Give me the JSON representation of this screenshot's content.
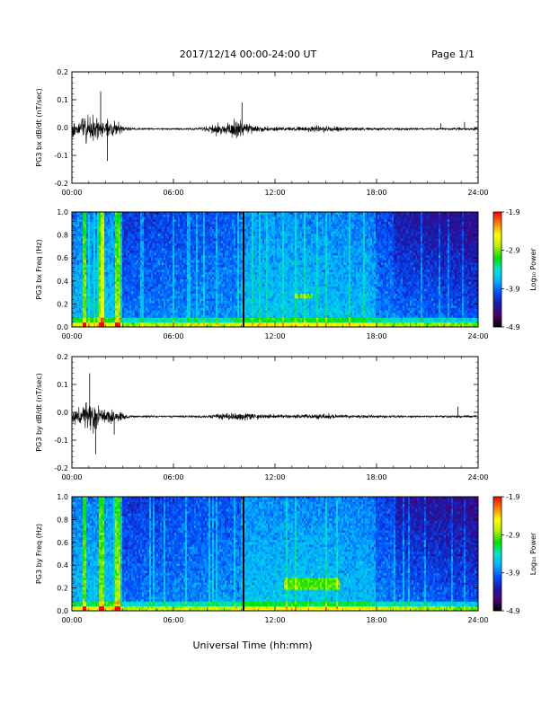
{
  "header": {
    "title": "2017/12/14  00:00-24:00 UT",
    "page": "Page 1/1"
  },
  "footer": {
    "xlabel": "Universal Time (hh:mm)"
  },
  "colors": {
    "trace": "#000000",
    "colormap": [
      "#000000",
      "#4b0070",
      "#1a1aa8",
      "#0050ff",
      "#00b4ff",
      "#00e6c8",
      "#00e000",
      "#b4f000",
      "#ffff00",
      "#ff8000",
      "#ff0000"
    ]
  },
  "chart_data": [
    {
      "type": "line",
      "panel": "bx-waveform",
      "ylabel": "PG3 bx dB/dt (nT/sec)",
      "xlim": [
        0,
        24
      ],
      "ylim": [
        -0.2,
        0.2
      ],
      "xticks": [
        "00:00",
        "06:00",
        "12:00",
        "18:00",
        "24:00"
      ],
      "yticks": [
        "-0.2",
        "-0.1",
        "0.0",
        "0.1",
        "0.2"
      ],
      "series": [
        {
          "amplitude_envelope": {
            "x": [
              0,
              0.5,
              1.0,
              1.5,
              2.0,
              2.5,
              3.0,
              3.5,
              4,
              6,
              7.5,
              8,
              8.5,
              9,
              9.5,
              10,
              10.5,
              11,
              12,
              13,
              14,
              15,
              16,
              17,
              18,
              20,
              22,
              23,
              24
            ],
            "y": [
              0.06,
              0.08,
              0.09,
              0.07,
              0.05,
              0.06,
              0.02,
              0.008,
              0.006,
              0.005,
              0.008,
              0.02,
              0.04,
              0.03,
              0.05,
              0.05,
              0.03,
              0.02,
              0.015,
              0.012,
              0.015,
              0.02,
              0.012,
              0.01,
              0.008,
              0.006,
              0.006,
              0.007,
              0.006
            ]
          },
          "offset": -0.005,
          "notable_spikes": [
            [
              1.7,
              0.13
            ],
            [
              2.1,
              -0.12
            ],
            [
              10.05,
              0.09
            ],
            [
              21.8,
              0.015
            ],
            [
              23.2,
              0.02
            ]
          ]
        }
      ]
    },
    {
      "type": "heatmap",
      "panel": "bx-spectrogram",
      "ylabel": "PG3 bx Freq (Hz)",
      "xlim": [
        0,
        24
      ],
      "ylim": [
        0,
        1.0
      ],
      "xticks": [
        "00:00",
        "06:00",
        "12:00",
        "18:00",
        "24:00"
      ],
      "yticks": [
        "0.0",
        "0.2",
        "0.4",
        "0.6",
        "0.8",
        "1.0"
      ],
      "colorbar": {
        "label": "Log₁₀ Power",
        "range": [
          -4.9,
          -1.9
        ],
        "ticks": [
          "-1.9",
          "-2.9",
          "-3.9",
          "-4.9"
        ]
      },
      "data_gaps": [
        [
          10.05,
          10.15
        ]
      ],
      "bright_bands": [
        [
          0.6,
          0.9
        ],
        [
          1.6,
          1.9
        ],
        [
          2.6,
          2.9
        ]
      ],
      "feature_blob": {
        "x": [
          13.2,
          14.2
        ],
        "freq": [
          0.24,
          0.3
        ]
      }
    },
    {
      "type": "line",
      "panel": "by-waveform",
      "ylabel": "PG3 by dB/dt (nT/sec)",
      "xlim": [
        0,
        24
      ],
      "ylim": [
        -0.2,
        0.2
      ],
      "xticks": [
        "00:00",
        "06:00",
        "12:00",
        "18:00",
        "24:00"
      ],
      "yticks": [
        "-0.2",
        "-0.1",
        "0.0",
        "0.1",
        "0.2"
      ],
      "series": [
        {
          "amplitude_envelope": {
            "x": [
              0,
              0.5,
              1.0,
              1.5,
              2.0,
              2.5,
              3.0,
              3.5,
              4,
              6,
              8,
              8.5,
              9,
              9.5,
              10,
              10.5,
              11,
              12,
              13,
              14,
              15,
              16,
              17,
              18,
              20,
              22,
              23,
              24
            ],
            "y": [
              0.04,
              0.05,
              0.09,
              0.08,
              0.04,
              0.05,
              0.02,
              0.008,
              0.006,
              0.005,
              0.008,
              0.015,
              0.02,
              0.025,
              0.03,
              0.02,
              0.015,
              0.012,
              0.012,
              0.015,
              0.018,
              0.012,
              0.01,
              0.008,
              0.006,
              0.006,
              0.008,
              0.006
            ]
          },
          "offset": -0.015,
          "notable_spikes": [
            [
              1.05,
              0.14
            ],
            [
              1.4,
              -0.15
            ],
            [
              2.5,
              -0.08
            ],
            [
              22.8,
              0.02
            ]
          ]
        }
      ]
    },
    {
      "type": "heatmap",
      "panel": "by-spectrogram",
      "ylabel": "PG3 by Freq (Hz)",
      "xlim": [
        0,
        24
      ],
      "ylim": [
        0,
        1.0
      ],
      "xticks": [
        "00:00",
        "06:00",
        "12:00",
        "18:00",
        "24:00"
      ],
      "yticks": [
        "0.0",
        "0.2",
        "0.4",
        "0.6",
        "0.8",
        "1.0"
      ],
      "colorbar": {
        "label": "Log₁₀ Power",
        "range": [
          -4.9,
          -1.9
        ],
        "ticks": [
          "-1.9",
          "-2.9",
          "-3.9",
          "-4.9"
        ]
      },
      "data_gaps": [
        [
          10.05,
          10.15
        ]
      ],
      "bright_bands": [
        [
          0.6,
          0.9
        ],
        [
          1.6,
          1.9
        ],
        [
          2.6,
          2.9
        ]
      ],
      "feature_blob": {
        "x": [
          12.5,
          15.8
        ],
        "freq": [
          0.18,
          0.3
        ]
      }
    }
  ]
}
